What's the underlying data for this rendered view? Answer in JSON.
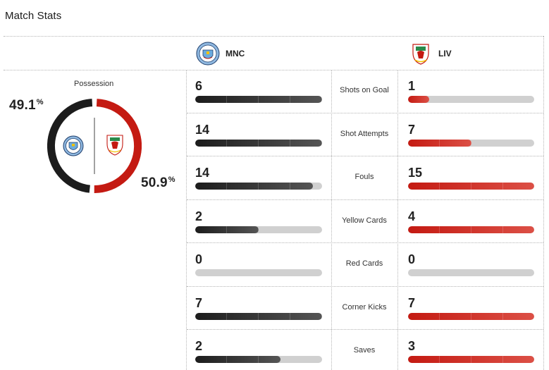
{
  "header": {
    "title": "Match Stats"
  },
  "teams": {
    "home": {
      "abbr": "MNC",
      "color": "#1c1c1c",
      "crest": "manchester-city-crest"
    },
    "away": {
      "abbr": "LIV",
      "color": "#c41a12",
      "crest": "liverpool-crest"
    }
  },
  "possession": {
    "label": "Possession",
    "home": {
      "value": 49.1,
      "text": "49.1",
      "unit": "%"
    },
    "away": {
      "value": 50.9,
      "text": "50.9",
      "unit": "%"
    }
  },
  "stats": [
    {
      "label": "Shots on Goal",
      "home": "6",
      "away": "1",
      "home_fill": 1.0,
      "away_fill": 0.17
    },
    {
      "label": "Shot Attempts",
      "home": "14",
      "away": "7",
      "home_fill": 1.0,
      "away_fill": 0.5
    },
    {
      "label": "Fouls",
      "home": "14",
      "away": "15",
      "home_fill": 0.93,
      "away_fill": 1.0
    },
    {
      "label": "Yellow Cards",
      "home": "2",
      "away": "4",
      "home_fill": 0.5,
      "away_fill": 1.0
    },
    {
      "label": "Red Cards",
      "home": "0",
      "away": "0",
      "home_fill": 0.0,
      "away_fill": 0.0
    },
    {
      "label": "Corner Kicks",
      "home": "7",
      "away": "7",
      "home_fill": 1.0,
      "away_fill": 1.0
    },
    {
      "label": "Saves",
      "home": "2",
      "away": "3",
      "home_fill": 0.67,
      "away_fill": 1.0
    }
  ]
}
